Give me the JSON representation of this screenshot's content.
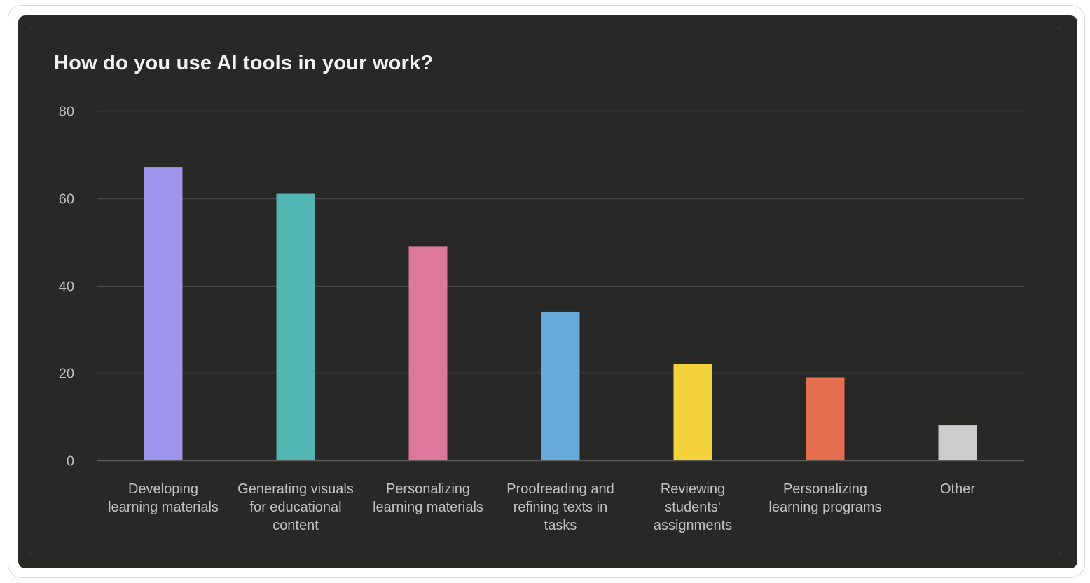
{
  "chart_data": {
    "type": "bar",
    "title": "How do you use AI tools in your work?",
    "xlabel": "",
    "ylabel": "",
    "ylim": [
      0,
      80
    ],
    "yticks": [
      0,
      20,
      40,
      60,
      80
    ],
    "grid": true,
    "categories": [
      [
        "Developing",
        "learning materials"
      ],
      [
        "Generating visuals",
        "for educational",
        "content"
      ],
      [
        "Personalizing",
        "learning materials"
      ],
      [
        "Proofreading and",
        "refining texts in",
        "tasks"
      ],
      [
        "Reviewing",
        "students'",
        "assignments"
      ],
      [
        "Personalizing",
        "learning programs"
      ],
      [
        "Other"
      ]
    ],
    "values": [
      67,
      61,
      49,
      34,
      22,
      19,
      8
    ],
    "colors": [
      "#9d95ec",
      "#53b5b1",
      "#dc789b",
      "#67a9d9",
      "#f2d33e",
      "#e46e4e",
      "#cccccc"
    ]
  },
  "colors": {
    "background": "#282827",
    "gridline": "#474746",
    "baseline": "#5a5a59"
  }
}
